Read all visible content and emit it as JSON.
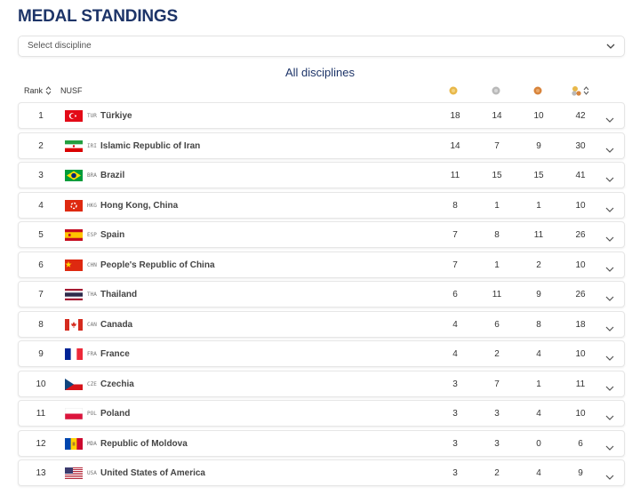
{
  "header": {
    "title": "MEDAL STANDINGS"
  },
  "filter": {
    "placeholder": "Select discipline"
  },
  "table": {
    "caption": "All disciplines",
    "columns": [
      "Rank",
      "NUSF"
    ],
    "rows": [
      [
        1,
        "TUR",
        "Türkiye",
        18,
        14,
        10,
        42
      ],
      [
        2,
        "IRI",
        "Islamic Republic of Iran",
        14,
        7,
        9,
        30
      ],
      [
        3,
        "BRA",
        "Brazil",
        11,
        15,
        15,
        41
      ],
      [
        4,
        "HKG",
        "Hong Kong, China",
        8,
        1,
        1,
        10
      ],
      [
        5,
        "ESP",
        "Spain",
        7,
        8,
        11,
        26
      ],
      [
        6,
        "CHN",
        "People's Republic of China",
        7,
        1,
        2,
        10
      ],
      [
        7,
        "THA",
        "Thailand",
        6,
        11,
        9,
        26
      ],
      [
        8,
        "CAN",
        "Canada",
        4,
        6,
        8,
        18
      ],
      [
        9,
        "FRA",
        "France",
        4,
        2,
        4,
        10
      ],
      [
        10,
        "CZE",
        "Czechia",
        3,
        7,
        1,
        11
      ],
      [
        11,
        "POL",
        "Poland",
        3,
        3,
        4,
        10
      ],
      [
        12,
        "MDA",
        "Republic of Moldova",
        3,
        3,
        0,
        6
      ],
      [
        13,
        "USA",
        "United States of America",
        3,
        2,
        4,
        9
      ]
    ]
  }
}
